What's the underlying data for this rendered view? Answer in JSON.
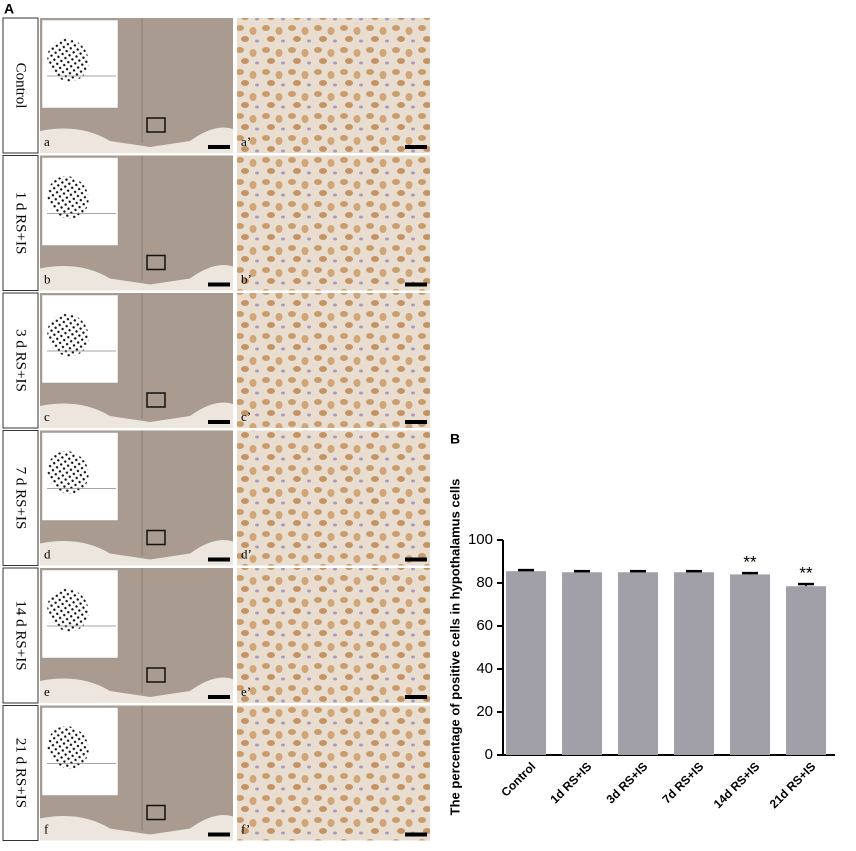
{
  "panel_a": {
    "label": "A",
    "rows": [
      {
        "group": "Control",
        "left_label": "a",
        "right_label": "a’"
      },
      {
        "group": "1 d RS+IS",
        "left_label": "b",
        "right_label": "b’"
      },
      {
        "group": "3 d RS+IS",
        "left_label": "c",
        "right_label": "c’"
      },
      {
        "group": "7 d RS+IS",
        "left_label": "d",
        "right_label": "d’"
      },
      {
        "group": "14 d RS+IS",
        "left_label": "e",
        "right_label": "e’"
      },
      {
        "group": "21 d RS+IS",
        "left_label": "f",
        "right_label": "f’"
      }
    ]
  },
  "chart_data": {
    "type": "bar",
    "panel_label": "B",
    "y_label": "The percentage of positive cells in hypothalamus cells",
    "categories": [
      "Control",
      "1d RS+IS",
      "3d RS+IS",
      "7d RS+IS",
      "14d RS+IS",
      "21d RS+IS"
    ],
    "values": [
      85.5,
      85,
      85,
      85,
      84,
      78.5
    ],
    "errors": [
      0.5,
      0.5,
      0.5,
      0.5,
      0.6,
      1
    ],
    "color": "#a19fa8",
    "ylim": [
      0,
      100
    ],
    "yticks": [
      0,
      20,
      40,
      60,
      80,
      100
    ],
    "grid": false,
    "annotations": [
      {
        "category": "14d RS+IS",
        "text": "**"
      },
      {
        "category": "21d RS+IS",
        "text": "**"
      }
    ]
  }
}
